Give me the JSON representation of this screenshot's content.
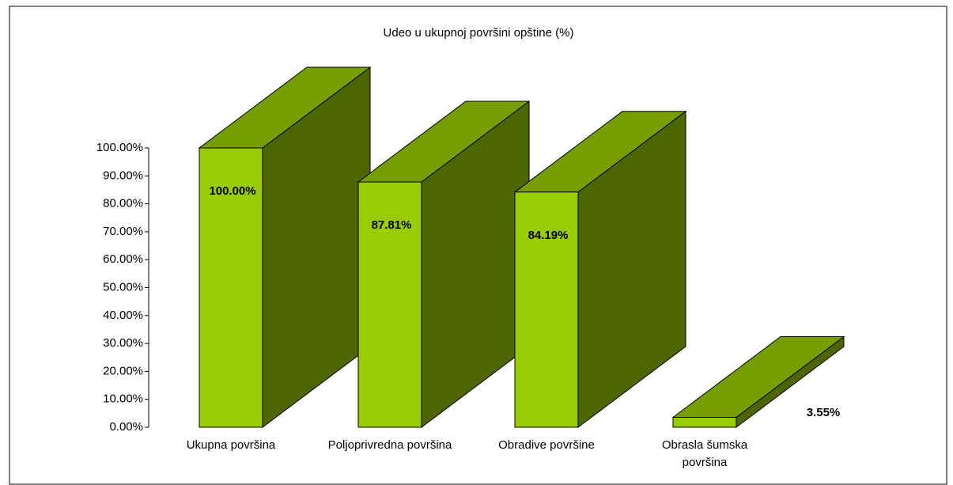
{
  "chart_data": {
    "type": "bar3d",
    "title": "Udeo  u ukupnoj površini opštine (%)",
    "categories": [
      "Ukupna površina",
      "Poljoprivredna površina",
      "Obradive površine",
      "Obrasla šumska površina"
    ],
    "values": [
      100,
      87.81,
      84.19,
      3.55
    ],
    "value_labels": [
      "100.00%",
      "87.81%",
      "84.19%",
      "3.55%"
    ],
    "color": "#99cc00",
    "ylim": [
      0,
      100
    ],
    "yticks": [
      {
        "value": 0,
        "label": "0.00%"
      },
      {
        "value": 10,
        "label": "10.00%"
      },
      {
        "value": 20,
        "label": "20.00%"
      },
      {
        "value": 30,
        "label": "30.00%"
      },
      {
        "value": 40,
        "label": "40.00%"
      },
      {
        "value": 50,
        "label": "50.00%"
      },
      {
        "value": 60,
        "label": "60.00%"
      },
      {
        "value": 70,
        "label": "70.00%"
      },
      {
        "value": 80,
        "label": "80.00%"
      },
      {
        "value": 90,
        "label": "90.00%"
      },
      {
        "value": 100,
        "label": "100.00%"
      }
    ]
  }
}
